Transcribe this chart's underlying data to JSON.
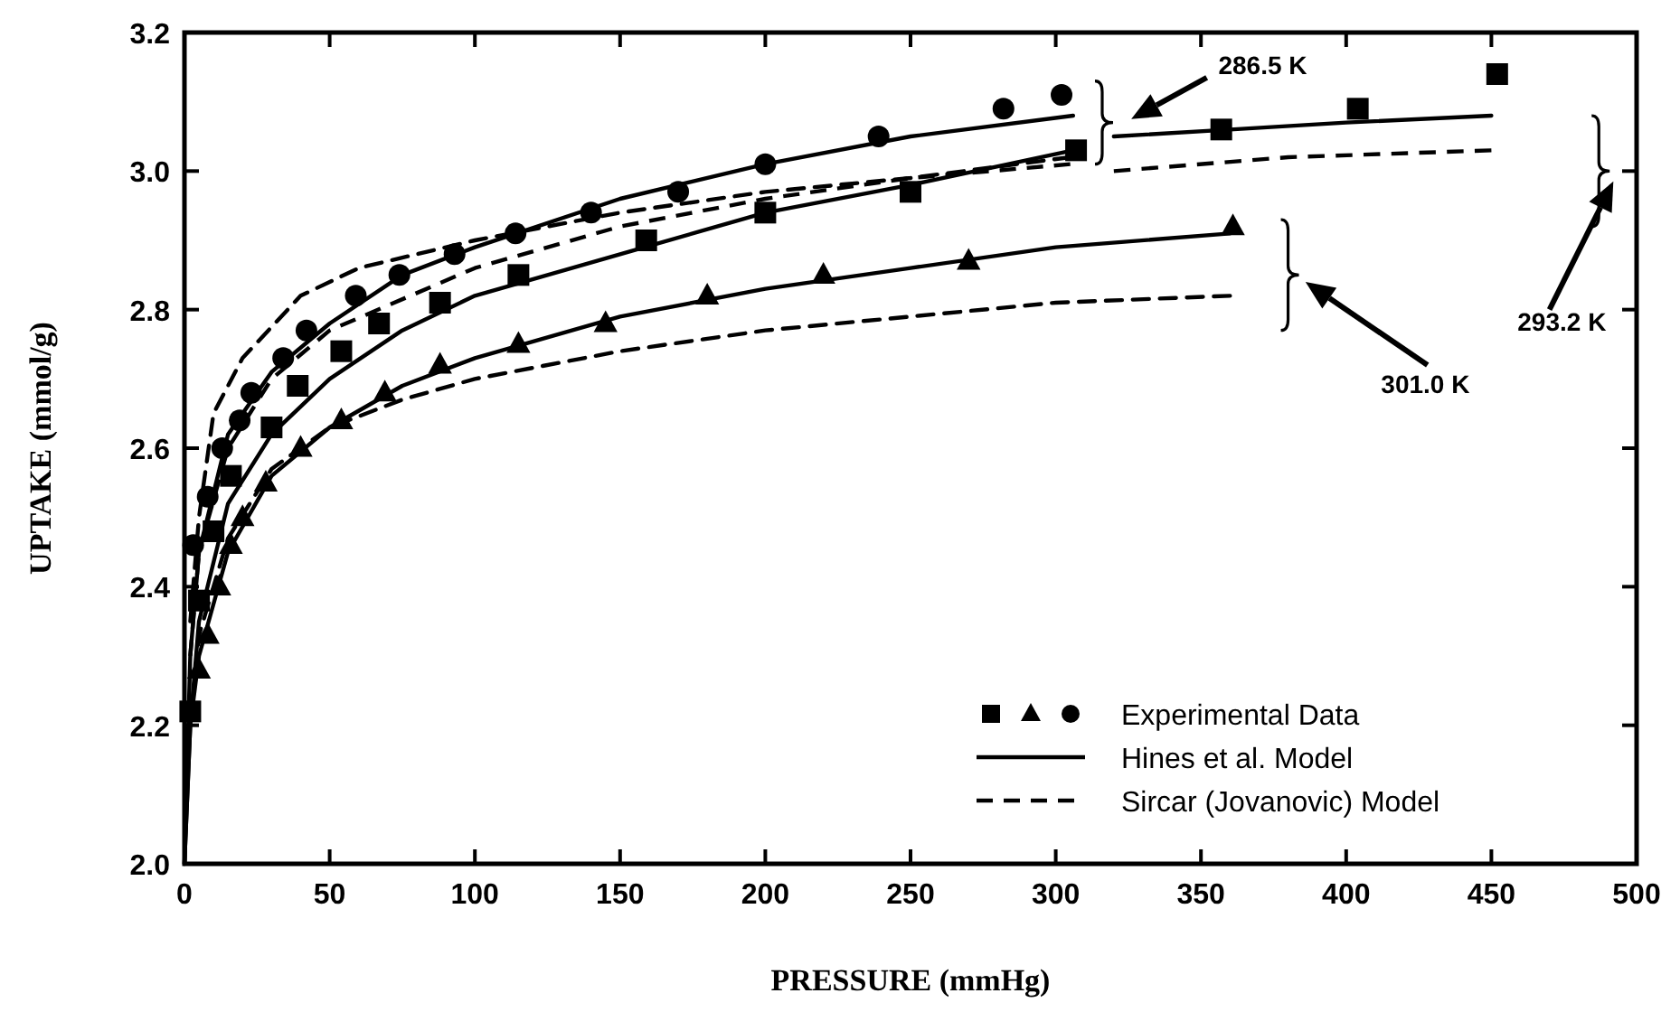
{
  "chart_data": {
    "type": "scatter",
    "xlabel": "PRESSURE (mmHg)",
    "ylabel": "UPTAKE (mmol/g)",
    "xlim": [
      0,
      500
    ],
    "ylim": [
      2.0,
      3.2
    ],
    "xticks": [
      0,
      50,
      100,
      150,
      200,
      250,
      300,
      350,
      400,
      450,
      500
    ],
    "yticks": [
      {
        "value": 2.0,
        "label": "2.0"
      },
      2.2,
      2.4,
      2.6,
      2.8,
      {
        "value": 3.0,
        "label": "3.0"
      },
      3.2
    ],
    "grid": false,
    "legend": "bottom right",
    "series": [
      {
        "marker": "square",
        "color": "#000000",
        "x": [
          2,
          5,
          10,
          16,
          30,
          39,
          54,
          67,
          88,
          115,
          159,
          200,
          250,
          307,
          357,
          404,
          452
        ],
        "values": [
          2.22,
          2.38,
          2.48,
          2.56,
          2.63,
          2.69,
          2.74,
          2.78,
          2.81,
          2.85,
          2.9,
          2.94,
          2.97,
          3.03,
          3.06,
          3.09,
          3.14
        ]
      },
      {
        "marker": "triangle",
        "color": "#000000",
        "x": [
          5,
          8,
          12,
          16,
          20,
          28,
          40,
          54,
          69,
          88,
          115,
          145,
          180,
          220,
          270,
          361
        ],
        "values": [
          2.28,
          2.33,
          2.4,
          2.46,
          2.5,
          2.55,
          2.6,
          2.64,
          2.68,
          2.72,
          2.75,
          2.78,
          2.82,
          2.85,
          2.87,
          2.92
        ]
      },
      {
        "name": "Experimental Data",
        "marker": "circle",
        "color": "#000000",
        "x": [
          3,
          8,
          13,
          19,
          23,
          34,
          42,
          59,
          74,
          93,
          114,
          140,
          170,
          200,
          239,
          282,
          302
        ],
        "values": [
          2.46,
          2.53,
          2.6,
          2.64,
          2.68,
          2.73,
          2.77,
          2.82,
          2.85,
          2.88,
          2.91,
          2.94,
          2.97,
          3.01,
          3.05,
          3.09,
          3.11
        ]
      },
      {
        "type": "line",
        "name": "Hines et al. Model",
        "line_style": "solid",
        "color": "#000000",
        "x": [
          0,
          2,
          5,
          15,
          30,
          50,
          75,
          100,
          150,
          200,
          250,
          306
        ],
        "values": [
          2.0,
          2.3,
          2.45,
          2.62,
          2.71,
          2.78,
          2.85,
          2.89,
          2.96,
          3.01,
          3.05,
          3.08
        ]
      },
      {
        "type": "line",
        "name": "Sircar (Jovanovic) Model",
        "line_style": "dashed",
        "color": "#000000",
        "x": [
          2,
          5,
          10,
          20,
          40,
          60,
          100,
          150,
          200,
          250,
          305
        ],
        "values": [
          2.35,
          2.5,
          2.65,
          2.73,
          2.82,
          2.86,
          2.9,
          2.94,
          2.97,
          2.99,
          3.02
        ]
      },
      {
        "type": "line",
        "line_style": "solid",
        "color": "#000000",
        "x": [
          0,
          2,
          5,
          15,
          30,
          50,
          75,
          100,
          150,
          200,
          250,
          306,
          315,
          320,
          360,
          400,
          450
        ],
        "values": [
          2.0,
          2.2,
          2.35,
          2.52,
          2.62,
          2.7,
          2.77,
          2.82,
          2.88,
          2.94,
          2.98,
          3.03,
          null,
          3.05,
          3.06,
          3.07,
          3.08
        ]
      },
      {
        "type": "line",
        "line_style": "dashed",
        "color": "#000000",
        "x": [
          2,
          5,
          15,
          30,
          50,
          100,
          150,
          200,
          250,
          305,
          315,
          320,
          380,
          450
        ],
        "values": [
          2.3,
          2.45,
          2.6,
          2.7,
          2.77,
          2.86,
          2.92,
          2.96,
          2.99,
          3.01,
          null,
          3.0,
          3.02,
          3.03
        ]
      },
      {
        "type": "line",
        "line_style": "solid",
        "color": "#000000",
        "x": [
          0,
          2,
          5,
          15,
          30,
          50,
          75,
          100,
          150,
          200,
          250,
          300,
          360
        ],
        "values": [
          2.0,
          2.2,
          2.3,
          2.45,
          2.56,
          2.63,
          2.69,
          2.73,
          2.79,
          2.83,
          2.86,
          2.89,
          2.91
        ]
      },
      {
        "type": "line",
        "line_style": "dashed",
        "color": "#000000",
        "x": [
          2,
          5,
          15,
          30,
          50,
          75,
          100,
          150,
          200,
          250,
          300,
          360
        ],
        "values": [
          2.2,
          2.33,
          2.47,
          2.57,
          2.63,
          2.67,
          2.7,
          2.74,
          2.77,
          2.79,
          2.81,
          2.82
        ]
      }
    ],
    "annotations": [
      "286.5 K",
      "293.2 K",
      "301.0 K"
    ]
  }
}
